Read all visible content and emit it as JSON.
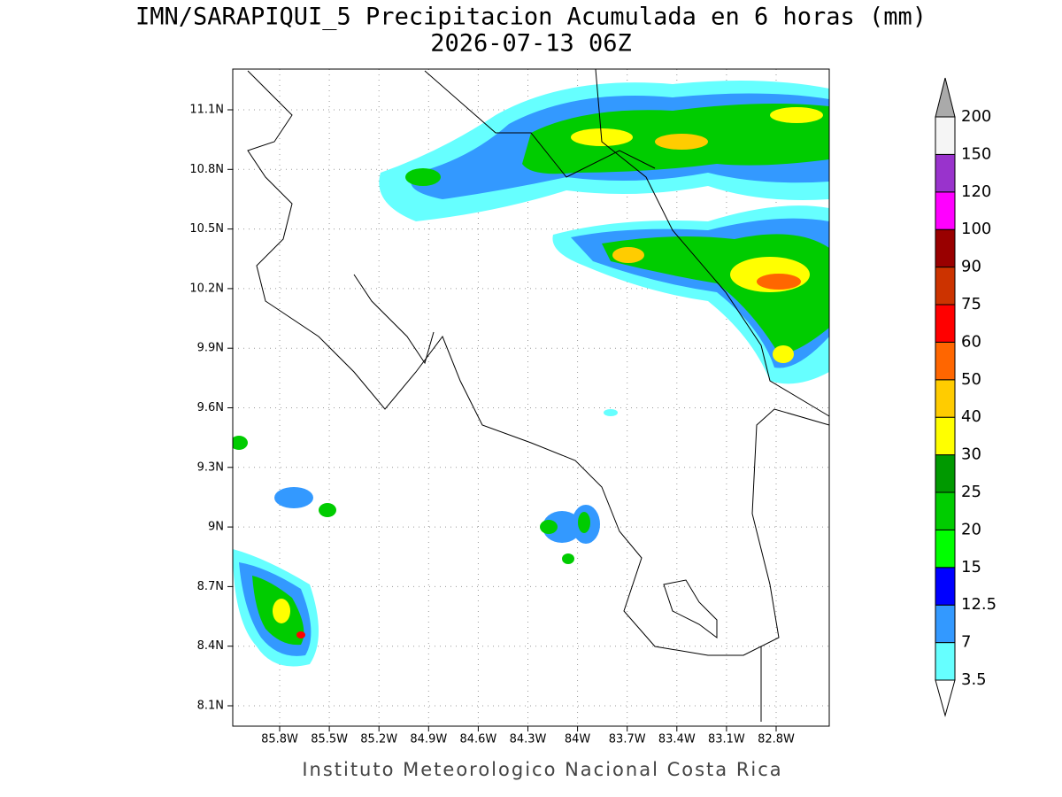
{
  "title": "IMN/SARAPIQUI_5 Precipitacion Acumulada en 6 horas (mm)",
  "subtitle": "2026-07-13 06Z",
  "map": {
    "lat_ticks": [
      "11.1N",
      "10.8N",
      "10.5N",
      "10.2N",
      "9.9N",
      "9.6N",
      "9.3N",
      "9N",
      "8.7N",
      "8.4N",
      "8.1N"
    ],
    "lon_ticks": [
      "85.8W",
      "85.5W",
      "85.2W",
      "84.9W",
      "84.6W",
      "84.3W",
      "84W",
      "83.7W",
      "83.4W",
      "83.1W",
      "82.8W"
    ]
  },
  "colorbar": {
    "labels": [
      "3.5",
      "7",
      "12.5",
      "15",
      "20",
      "25",
      "30",
      "40",
      "50",
      "60",
      "75",
      "90",
      "100",
      "120",
      "150",
      "200"
    ],
    "colors": [
      "#66ffff",
      "#3399ff",
      "#0000ff",
      "#00ff00",
      "#00cc00",
      "#009900",
      "#ffff00",
      "#ffcc00",
      "#ff6600",
      "#ff0000",
      "#cc3300",
      "#990000",
      "#ff00ff",
      "#9933cc",
      "#f5f5f5"
    ],
    "under_color": "#ffffff",
    "over_color": "#aaaaaa"
  },
  "footer": "Instituto Meteorologico Nacional Costa Rica"
}
